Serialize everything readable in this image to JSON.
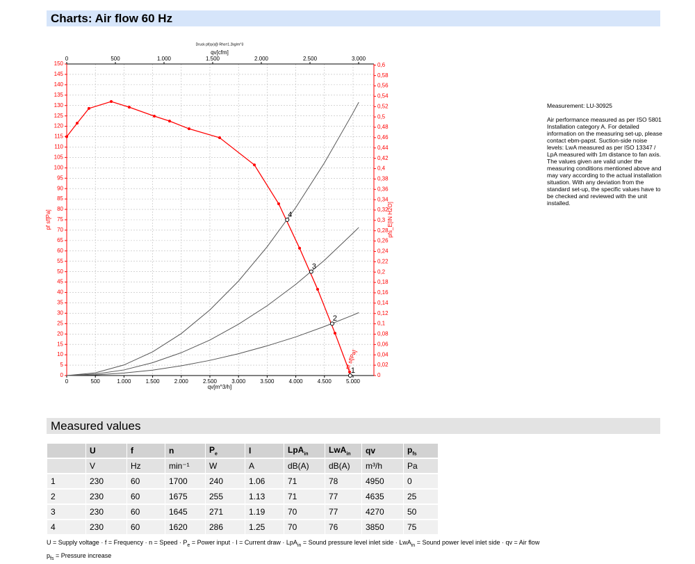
{
  "header": {
    "title": "Charts: Air flow 60 Hz"
  },
  "chart_data": {
    "type": "line",
    "title": "Druck pf(qv)@ Rho=1.2kg/m^3",
    "x_label": "qv[m^3/h]",
    "x2_label": "qv[cfm]",
    "y_label": "pf sf[Pa]",
    "y2_label": "pfs_E[IN H2O]",
    "xlim": [
      0,
      5364
    ],
    "x2lim": [
      0,
      3157
    ],
    "ylim": [
      0,
      150
    ],
    "y2lim": [
      0,
      0.6024
    ],
    "grid": true,
    "xticks": [
      0,
      500,
      {
        "value": 1000,
        "label": "1.000"
      },
      {
        "value": 1500,
        "label": "1.500"
      },
      {
        "value": 2000,
        "label": "2.000"
      },
      {
        "value": 2500,
        "label": "2.500"
      },
      {
        "value": 3000,
        "label": "3.000"
      },
      {
        "value": 3500,
        "label": "3.500"
      },
      {
        "value": 4000,
        "label": "4.000"
      },
      {
        "value": 4500,
        "label": "4.500"
      },
      {
        "value": 5000,
        "label": "5.000"
      }
    ],
    "x2ticks": [
      0,
      500,
      {
        "value": 1000,
        "label": "1.000"
      },
      {
        "value": 1500,
        "label": "1.500"
      },
      {
        "value": 2000,
        "label": "2.000"
      },
      {
        "value": 2500,
        "label": "2.500"
      },
      {
        "value": 3000,
        "label": "3.000"
      }
    ],
    "yticks": [
      0,
      5,
      10,
      15,
      20,
      25,
      30,
      35,
      40,
      45,
      50,
      55,
      60,
      65,
      70,
      75,
      80,
      85,
      90,
      95,
      100,
      105,
      110,
      115,
      120,
      125,
      130,
      135,
      140,
      145,
      150
    ],
    "y2ticks": [
      0,
      {
        "value": 0.02,
        "label": "0,02"
      },
      {
        "value": 0.04,
        "label": "0,04"
      },
      {
        "value": 0.06,
        "label": "0,06"
      },
      {
        "value": 0.08,
        "label": "0,08"
      },
      {
        "value": 0.1,
        "label": "0,1"
      },
      {
        "value": 0.12,
        "label": "0,12"
      },
      {
        "value": 0.14,
        "label": "0,14"
      },
      {
        "value": 0.16,
        "label": "0,16"
      },
      {
        "value": 0.18,
        "label": "0,18"
      },
      {
        "value": 0.2,
        "label": "0,2"
      },
      {
        "value": 0.22,
        "label": "0,22"
      },
      {
        "value": 0.24,
        "label": "0,24"
      },
      {
        "value": 0.26,
        "label": "0,26"
      },
      {
        "value": 0.28,
        "label": "0,28"
      },
      {
        "value": 0.3,
        "label": "0,3"
      },
      {
        "value": 0.32,
        "label": "0,32"
      },
      {
        "value": 0.34,
        "label": "0,34"
      },
      {
        "value": 0.36,
        "label": "0,36"
      },
      {
        "value": 0.38,
        "label": "0,38"
      },
      {
        "value": 0.4,
        "label": "0,4"
      },
      {
        "value": 0.42,
        "label": "0,42"
      },
      {
        "value": 0.44,
        "label": "0,44"
      },
      {
        "value": 0.46,
        "label": "0,46"
      },
      {
        "value": 0.48,
        "label": "0,48"
      },
      {
        "value": 0.5,
        "label": "0,5"
      },
      {
        "value": 0.52,
        "label": "0,52"
      },
      {
        "value": 0.54,
        "label": "0,54"
      },
      {
        "value": 0.56,
        "label": "0,56"
      },
      {
        "value": 0.58,
        "label": "0,58"
      },
      {
        "value": 0.6,
        "label": "0,6"
      }
    ],
    "series": [
      {
        "name": "pf sf[Pa]",
        "color": "#ff0000",
        "x": [
          0,
          182,
          388,
          777,
          1092,
          1529,
          1796,
          2136,
          2670,
          3277,
          3701,
          4066,
          4381,
          4684,
          4939
        ],
        "values": [
          115,
          121.5,
          128.6,
          131.9,
          129.2,
          124.9,
          122.5,
          118.8,
          114.5,
          101.4,
          82.7,
          61.3,
          41.5,
          20.4,
          1.7
        ]
      },
      {
        "color": "#555555",
        "x": [
          0,
          500,
          1000,
          1500,
          2000,
          2500,
          3000,
          3500,
          4000,
          4500,
          5000,
          5100
        ],
        "values": [
          0,
          1.3,
          5.1,
          11.4,
          20.2,
          31.6,
          45.5,
          62,
          80.9,
          102.4,
          126.5,
          131.6
        ]
      },
      {
        "color": "#555555",
        "x": [
          0,
          500,
          1000,
          1500,
          2000,
          2500,
          3000,
          3500,
          4000,
          4500,
          5000,
          5100
        ],
        "values": [
          0,
          0.7,
          2.7,
          6.2,
          11,
          17.1,
          24.7,
          33.6,
          43.9,
          55.5,
          68.6,
          71.3
        ]
      },
      {
        "color": "#555555",
        "x": [
          0,
          500,
          1000,
          1500,
          2000,
          2500,
          3000,
          3500,
          4000,
          4500,
          5000,
          5100
        ],
        "values": [
          0,
          0.3,
          1.2,
          2.6,
          4.7,
          7.3,
          10.5,
          14.3,
          18.6,
          23.6,
          29.1,
          30.3
        ]
      }
    ],
    "points": [
      {
        "label": "1",
        "x": 4950,
        "y": 0
      },
      {
        "label": "2",
        "x": 4635,
        "y": 25
      },
      {
        "label": "3",
        "x": 4270,
        "y": 50
      },
      {
        "label": "4",
        "x": 3850,
        "y": 75
      }
    ]
  },
  "notes": {
    "measurement": "Measurement: LU-30925",
    "text": "Air performance measured as per ISO 5801 Installation category A. For detailed information on the measuring set-up, please contact ebm-papst. Suction-side noise levels: LwA measured as per ISO 13347 / LpA measured with 1m distance to fan axis. The values given are valid under the measuring conditions mentioned above and may vary according to the actual installation situation. With any deviation from the standard set-up, the specific values have to be checked and reviewed with the unit installed."
  },
  "table": {
    "title": "Measured values",
    "headers": [
      {
        "text": "U"
      },
      {
        "text": "f"
      },
      {
        "text": "n"
      },
      {
        "text": "P",
        "sub": "e"
      },
      {
        "text": "I"
      },
      {
        "text": "LpA",
        "sub": "in"
      },
      {
        "text": "LwA",
        "sub": "in"
      },
      {
        "text": "qv"
      },
      {
        "text": "p",
        "sub": "fs"
      }
    ],
    "units": [
      "V",
      "Hz",
      "min⁻¹",
      "W",
      "A",
      "dB(A)",
      "dB(A)",
      "m³/h",
      "Pa"
    ],
    "rows": [
      [
        1,
        230,
        60,
        1700,
        240,
        1.06,
        71,
        78,
        4950,
        0
      ],
      [
        2,
        230,
        60,
        1675,
        255,
        1.13,
        71,
        77,
        4635,
        25
      ],
      [
        3,
        230,
        60,
        1645,
        271,
        1.19,
        70,
        77,
        4270,
        50
      ],
      [
        4,
        230,
        60,
        1620,
        286,
        1.25,
        70,
        76,
        3850,
        75
      ]
    ]
  },
  "legend": {
    "separator": " · ",
    "lines": [
      [
        {
          "sym": "U",
          "text": " = Supply voltage"
        },
        {
          "sym": "f",
          "text": " = Frequency"
        },
        {
          "sym": "n",
          "text": " = Speed"
        },
        {
          "sym": "P",
          "sub": "e",
          "text": " = Power input"
        },
        {
          "sym": "I",
          "text": " = Current draw"
        },
        {
          "sym": "LpA",
          "sub": "in",
          "text": " = Sound pressure level inlet side"
        },
        {
          "sym": "LwA",
          "sub": "in",
          "text": " = Sound power level inlet side"
        },
        {
          "sym": "qv",
          "text": " = Air flow"
        }
      ],
      [
        {
          "sym": "p",
          "sub": "fs",
          "text": " = Pressure increase"
        }
      ]
    ]
  }
}
